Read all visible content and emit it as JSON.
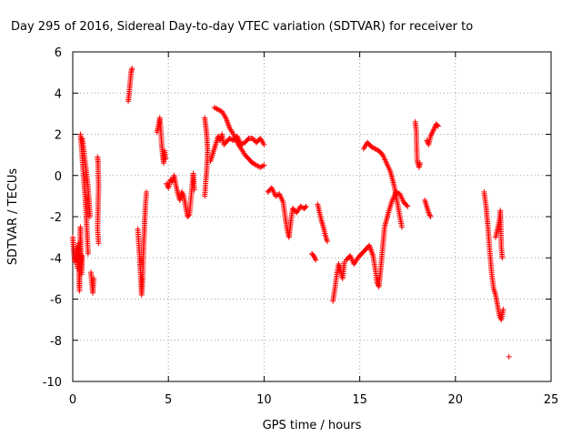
{
  "chart_data": {
    "type": "scatter",
    "title": "Day 295 of 2016, Sidereal Day-to-day VTEC variation (SDTVAR) for receiver to",
    "xlabel": "GPS time / hours",
    "ylabel": "SDTVAR / TECUs",
    "xlim": [
      0,
      25
    ],
    "ylim": [
      -10,
      6
    ],
    "xticks": [
      0,
      5,
      10,
      15,
      20,
      25
    ],
    "yticks": [
      -10,
      -8,
      -6,
      -4,
      -2,
      0,
      2,
      4,
      6
    ],
    "grid": true,
    "marker": "+",
    "color": "#ff0000",
    "series": [
      {
        "name": "SDTVAR",
        "segments": [
          [
            [
              0.0,
              -3.0
            ],
            [
              0.1,
              -4.2
            ],
            [
              0.2,
              -3.5
            ],
            [
              0.25,
              -4.5
            ],
            [
              0.3,
              -3.3
            ],
            [
              0.35,
              -5.6
            ],
            [
              0.4,
              -2.5
            ],
            [
              0.45,
              -4.8
            ],
            [
              0.5,
              -3.9
            ]
          ],
          [
            [
              0.4,
              2.0
            ],
            [
              0.45,
              1.5
            ],
            [
              0.5,
              0.8
            ],
            [
              0.55,
              0.2
            ],
            [
              0.6,
              -0.5
            ],
            [
              0.65,
              -1.0
            ],
            [
              0.7,
              -1.8
            ],
            [
              0.75,
              -2.8
            ],
            [
              0.8,
              -3.8
            ]
          ],
          [
            [
              0.5,
              1.8
            ],
            [
              0.6,
              1.0
            ],
            [
              0.7,
              0.3
            ],
            [
              0.8,
              -0.6
            ],
            [
              0.85,
              -1.2
            ],
            [
              0.9,
              -2.0
            ]
          ],
          [
            [
              0.95,
              -4.7
            ],
            [
              1.0,
              -5.2
            ],
            [
              1.05,
              -5.7
            ],
            [
              1.1,
              -5.0
            ]
          ],
          [
            [
              1.3,
              0.9
            ],
            [
              1.32,
              0.6
            ],
            [
              1.35,
              -0.5
            ],
            [
              1.3,
              -2.6
            ],
            [
              1.35,
              -3.3
            ]
          ],
          [
            [
              2.9,
              3.6
            ],
            [
              2.95,
              4.0
            ],
            [
              3.0,
              4.5
            ],
            [
              3.05,
              5.0
            ],
            [
              3.1,
              5.2
            ]
          ],
          [
            [
              3.4,
              -2.6
            ],
            [
              3.45,
              -3.3
            ],
            [
              3.5,
              -4.0
            ],
            [
              3.55,
              -4.8
            ],
            [
              3.6,
              -5.8
            ],
            [
              3.65,
              -5.0
            ],
            [
              3.7,
              -3.5
            ],
            [
              3.75,
              -2.5
            ],
            [
              3.8,
              -1.5
            ],
            [
              3.85,
              -0.8
            ]
          ],
          [
            [
              4.4,
              2.1
            ],
            [
              4.5,
              2.5
            ],
            [
              4.55,
              2.8
            ],
            [
              4.6,
              2.2
            ],
            [
              4.65,
              1.5
            ],
            [
              4.7,
              1.0
            ],
            [
              4.75,
              0.6
            ],
            [
              4.8,
              1.2
            ],
            [
              4.85,
              0.8
            ]
          ],
          [
            [
              4.9,
              -0.4
            ],
            [
              5.0,
              -0.6
            ],
            [
              5.1,
              -0.2
            ],
            [
              5.2,
              -0.3
            ],
            [
              5.3,
              0.0
            ],
            [
              5.4,
              -0.5
            ],
            [
              5.5,
              -0.9
            ],
            [
              5.6,
              -1.2
            ],
            [
              5.7,
              -0.8
            ],
            [
              5.8,
              -1.0
            ],
            [
              5.9,
              -1.5
            ],
            [
              6.0,
              -2.0
            ],
            [
              6.1,
              -1.9
            ],
            [
              6.3,
              0.1
            ],
            [
              6.35,
              -0.7
            ]
          ],
          [
            [
              6.9,
              2.8
            ],
            [
              6.95,
              2.4
            ],
            [
              7.0,
              2.0
            ],
            [
              7.05,
              1.2
            ],
            [
              7.0,
              0.2
            ],
            [
              6.95,
              -0.3
            ],
            [
              6.9,
              -1.0
            ]
          ],
          [
            [
              7.2,
              0.7
            ],
            [
              7.3,
              1.0
            ],
            [
              7.4,
              1.3
            ],
            [
              7.5,
              1.6
            ],
            [
              7.6,
              1.9
            ],
            [
              7.7,
              1.7
            ],
            [
              7.8,
              2.0
            ],
            [
              7.9,
              1.5
            ],
            [
              8.0,
              1.6
            ],
            [
              8.2,
              1.8
            ],
            [
              8.4,
              1.7
            ],
            [
              8.6,
              1.9
            ],
            [
              8.8,
              1.5
            ],
            [
              9.0,
              1.6
            ],
            [
              9.2,
              1.8
            ],
            [
              9.4,
              1.8
            ],
            [
              9.6,
              1.6
            ],
            [
              9.8,
              1.8
            ],
            [
              10.0,
              1.5
            ]
          ],
          [
            [
              7.4,
              3.3
            ],
            [
              7.6,
              3.2
            ],
            [
              7.8,
              3.1
            ],
            [
              8.0,
              2.8
            ],
            [
              8.2,
              2.3
            ],
            [
              8.4,
              2.0
            ],
            [
              8.6,
              1.6
            ],
            [
              8.8,
              1.3
            ],
            [
              9.0,
              1.0
            ],
            [
              9.2,
              0.8
            ],
            [
              9.4,
              0.6
            ],
            [
              9.6,
              0.5
            ],
            [
              9.8,
              0.4
            ],
            [
              10.0,
              0.5
            ]
          ],
          [
            [
              10.2,
              -0.8
            ],
            [
              10.4,
              -0.6
            ],
            [
              10.6,
              -1.0
            ],
            [
              10.8,
              -0.9
            ],
            [
              11.0,
              -1.3
            ],
            [
              11.1,
              -2.0
            ],
            [
              11.2,
              -2.6
            ],
            [
              11.3,
              -3.0
            ],
            [
              11.4,
              -2.2
            ],
            [
              11.5,
              -1.6
            ],
            [
              11.7,
              -1.8
            ],
            [
              11.9,
              -1.5
            ],
            [
              12.1,
              -1.6
            ],
            [
              12.2,
              -1.5
            ]
          ],
          [
            [
              12.5,
              -3.8
            ],
            [
              12.6,
              -3.9
            ],
            [
              12.7,
              -4.1
            ]
          ],
          [
            [
              12.8,
              -1.4
            ],
            [
              12.9,
              -1.8
            ],
            [
              13.0,
              -2.2
            ],
            [
              13.1,
              -2.5
            ],
            [
              13.2,
              -2.9
            ],
            [
              13.3,
              -3.2
            ]
          ],
          [
            [
              13.6,
              -6.1
            ],
            [
              13.7,
              -5.5
            ],
            [
              13.8,
              -4.8
            ],
            [
              13.9,
              -4.3
            ],
            [
              14.0,
              -4.6
            ],
            [
              14.1,
              -5.0
            ],
            [
              14.2,
              -4.2
            ]
          ],
          [
            [
              14.3,
              -4.1
            ],
            [
              14.5,
              -3.9
            ],
            [
              14.7,
              -4.3
            ],
            [
              14.9,
              -4.0
            ],
            [
              15.1,
              -3.8
            ],
            [
              15.3,
              -3.6
            ],
            [
              15.5,
              -3.4
            ],
            [
              15.7,
              -3.9
            ],
            [
              15.8,
              -4.5
            ],
            [
              15.9,
              -5.2
            ],
            [
              16.0,
              -5.4
            ],
            [
              16.1,
              -4.5
            ],
            [
              16.2,
              -3.5
            ],
            [
              16.3,
              -2.5
            ],
            [
              16.5,
              -1.8
            ],
            [
              16.7,
              -1.2
            ],
            [
              16.9,
              -0.8
            ],
            [
              17.1,
              -0.9
            ],
            [
              17.3,
              -1.3
            ],
            [
              17.5,
              -1.5
            ]
          ],
          [
            [
              15.2,
              1.3
            ],
            [
              15.4,
              1.6
            ],
            [
              15.6,
              1.4
            ],
            [
              15.8,
              1.3
            ],
            [
              16.0,
              1.2
            ],
            [
              16.2,
              1.0
            ],
            [
              16.4,
              0.6
            ],
            [
              16.6,
              0.2
            ],
            [
              16.8,
              -0.5
            ],
            [
              17.0,
              -1.5
            ],
            [
              17.2,
              -2.5
            ]
          ],
          [
            [
              17.9,
              2.6
            ],
            [
              17.95,
              2.2
            ],
            [
              18.0,
              0.7
            ],
            [
              18.1,
              0.4
            ],
            [
              18.15,
              0.6
            ]
          ],
          [
            [
              18.4,
              -1.2
            ],
            [
              18.5,
              -1.5
            ],
            [
              18.6,
              -1.8
            ],
            [
              18.7,
              -2.0
            ]
          ],
          [
            [
              18.5,
              1.7
            ],
            [
              18.6,
              1.5
            ],
            [
              18.7,
              1.9
            ],
            [
              18.8,
              2.1
            ],
            [
              18.9,
              2.3
            ],
            [
              19.0,
              2.5
            ],
            [
              19.1,
              2.4
            ]
          ],
          [
            [
              21.5,
              -0.8
            ],
            [
              21.6,
              -1.5
            ],
            [
              21.7,
              -2.5
            ],
            [
              21.8,
              -3.7
            ],
            [
              21.9,
              -4.8
            ],
            [
              22.0,
              -5.5
            ],
            [
              22.1,
              -5.8
            ],
            [
              22.2,
              -6.3
            ],
            [
              22.3,
              -6.8
            ],
            [
              22.4,
              -7.0
            ],
            [
              22.5,
              -6.5
            ]
          ],
          [
            [
              22.1,
              -3.0
            ],
            [
              22.2,
              -2.6
            ],
            [
              22.3,
              -2.2
            ],
            [
              22.35,
              -1.7
            ],
            [
              22.4,
              -3.5
            ],
            [
              22.45,
              -4.0
            ]
          ],
          [
            [
              22.8,
              -8.8
            ]
          ]
        ]
      }
    ]
  }
}
